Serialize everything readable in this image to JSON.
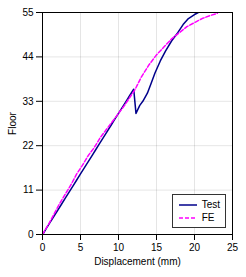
{
  "chart_data": {
    "type": "line",
    "xlabel": "Displacement (mm)",
    "ylabel": "Floor",
    "xlim": [
      0,
      25
    ],
    "ylim": [
      0,
      55
    ],
    "xticks": [
      0,
      5,
      10,
      15,
      20,
      25
    ],
    "yticks": [
      0,
      11,
      22,
      33,
      44,
      55
    ],
    "grid": true,
    "legend": "lower right",
    "series": [
      {
        "name": "Test",
        "color": "#00008B",
        "line_style": "solid",
        "x": [
          0,
          0.2,
          0.5,
          1.0,
          1.5,
          2.0,
          2.5,
          3.0,
          3.5,
          4.0,
          4.5,
          5.0,
          5.5,
          6.0,
          6.5,
          7.0,
          7.5,
          8.0,
          8.5,
          9.0,
          9.5,
          10.0,
          10.5,
          11.0,
          11.5,
          12.0,
          12.3,
          12.8,
          13.2,
          13.8,
          14.2,
          14.8,
          15.5,
          16.2,
          17.0,
          17.8,
          18.5,
          19.2,
          20.0,
          20.5
        ],
        "values": [
          0,
          0.5,
          1.5,
          3,
          4.5,
          6,
          7.5,
          9,
          10.5,
          12,
          13.5,
          15,
          16.5,
          18,
          19.5,
          21,
          22.5,
          24,
          25.5,
          27,
          28.5,
          30,
          31.5,
          33,
          34.5,
          36,
          30,
          32,
          33,
          35,
          37,
          40,
          43,
          45.5,
          48,
          50,
          52,
          53.5,
          54.5,
          55
        ]
      },
      {
        "name": "FE",
        "color": "#FF00FF",
        "line_style": "dashed",
        "x": [
          0,
          0.3,
          0.8,
          1.5,
          2.2,
          3.0,
          3.8,
          4.5,
          5.2,
          6.0,
          6.8,
          7.6,
          8.4,
          9.2,
          10.0,
          10.8,
          11.5,
          12.2,
          13.0,
          14.0,
          15.0,
          16.0,
          17.0,
          18.0,
          19.0,
          20.0,
          21.0,
          22.0,
          23.0
        ],
        "values": [
          0,
          1,
          2.5,
          5,
          7.5,
          10,
          12.5,
          15,
          17,
          19.5,
          21.5,
          24,
          26,
          28,
          30,
          32,
          34,
          36,
          39,
          42,
          44.5,
          46.5,
          48.5,
          50,
          51.5,
          52.5,
          53.5,
          54.2,
          54.8
        ]
      }
    ]
  }
}
